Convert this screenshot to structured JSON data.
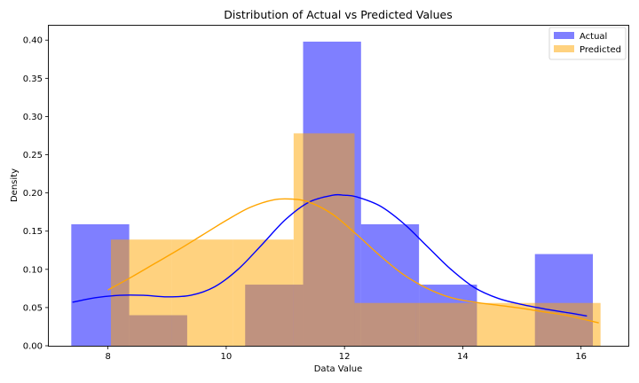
{
  "chart_data": {
    "type": "bar",
    "title": "Distribution of Actual vs Predicted Values",
    "xlabel": "Data Value",
    "ylabel": "Density",
    "xlim": [
      7.0,
      16.8
    ],
    "ylim": [
      0,
      0.42
    ],
    "xticks": [
      8,
      10,
      12,
      14,
      16
    ],
    "xtick_labels": [
      "8",
      "10",
      "12",
      "14",
      "16"
    ],
    "yticks": [
      0.0,
      0.05,
      0.1,
      0.15,
      0.2,
      0.25,
      0.3,
      0.35,
      0.4
    ],
    "ytick_labels": [
      "0.00",
      "0.05",
      "0.10",
      "0.15",
      "0.20",
      "0.25",
      "0.30",
      "0.35",
      "0.40"
    ],
    "grid": false,
    "legend": "top-right",
    "series": [
      {
        "name": "Actual",
        "color": "#0000ff",
        "opacity": 0.5,
        "bins": [
          {
            "x0": 7.38,
            "x1": 8.36,
            "density": 0.159
          },
          {
            "x0": 8.36,
            "x1": 9.34,
            "density": 0.04
          },
          {
            "x0": 9.34,
            "x1": 10.32,
            "density": 0.0
          },
          {
            "x0": 10.32,
            "x1": 11.3,
            "density": 0.08
          },
          {
            "x0": 11.3,
            "x1": 12.28,
            "density": 0.398
          },
          {
            "x0": 12.28,
            "x1": 13.26,
            "density": 0.159
          },
          {
            "x0": 13.26,
            "x1": 14.24,
            "density": 0.08
          },
          {
            "x0": 14.24,
            "x1": 15.22,
            "density": 0.0
          },
          {
            "x0": 15.22,
            "x1": 16.2,
            "density": 0.12
          }
        ],
        "kde": {
          "x": [
            7.4,
            7.8,
            8.2,
            8.6,
            9.0,
            9.4,
            9.8,
            10.2,
            10.6,
            11.0,
            11.4,
            11.8,
            12.0,
            12.2,
            12.6,
            13.0,
            13.4,
            13.8,
            14.2,
            14.6,
            15.0,
            15.4,
            15.8,
            16.1
          ],
          "y": [
            0.057,
            0.063,
            0.066,
            0.066,
            0.064,
            0.066,
            0.077,
            0.1,
            0.132,
            0.165,
            0.188,
            0.197,
            0.197,
            0.195,
            0.183,
            0.16,
            0.13,
            0.1,
            0.076,
            0.062,
            0.054,
            0.048,
            0.043,
            0.039
          ]
        }
      },
      {
        "name": "Predicted",
        "color": "#ffa500",
        "opacity": 0.5,
        "bins": [
          {
            "x0": 8.05,
            "x1": 9.08,
            "density": 0.139
          },
          {
            "x0": 9.08,
            "x1": 10.11,
            "density": 0.139
          },
          {
            "x0": 10.11,
            "x1": 11.14,
            "density": 0.139
          },
          {
            "x0": 11.14,
            "x1": 12.17,
            "density": 0.278
          },
          {
            "x0": 12.17,
            "x1": 13.2,
            "density": 0.056
          },
          {
            "x0": 13.2,
            "x1": 14.23,
            "density": 0.056
          },
          {
            "x0": 14.23,
            "x1": 15.26,
            "density": 0.056
          },
          {
            "x0": 15.26,
            "x1": 16.33,
            "density": 0.056
          }
        ],
        "kde": {
          "x": [
            8.0,
            8.4,
            8.8,
            9.2,
            9.6,
            10.0,
            10.4,
            10.8,
            11.1,
            11.4,
            11.8,
            12.2,
            12.6,
            13.0,
            13.4,
            13.8,
            14.2,
            14.6,
            15.0,
            15.4,
            15.8,
            16.3
          ],
          "y": [
            0.073,
            0.09,
            0.108,
            0.126,
            0.145,
            0.164,
            0.181,
            0.191,
            0.192,
            0.188,
            0.172,
            0.146,
            0.118,
            0.093,
            0.075,
            0.063,
            0.057,
            0.053,
            0.049,
            0.044,
            0.039,
            0.03
          ]
        }
      }
    ]
  }
}
